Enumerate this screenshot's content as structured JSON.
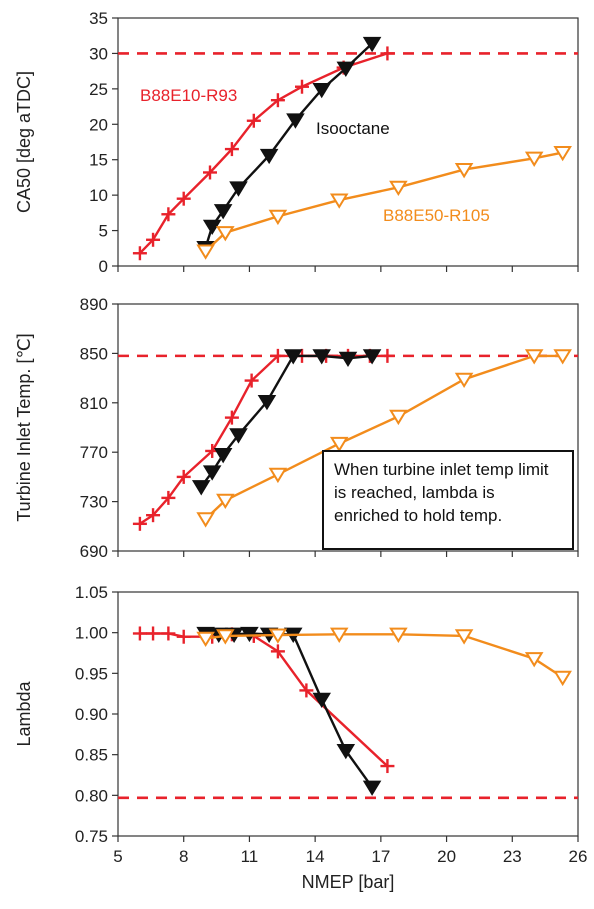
{
  "chart_data": [
    {
      "type": "line",
      "ylabel": "CA50 [deg aTDC]",
      "xlim": [
        5,
        26
      ],
      "ylim": [
        0,
        35
      ],
      "yticks": [
        "0",
        "5",
        "10",
        "15",
        "20",
        "25",
        "30",
        "35"
      ],
      "reference_line": 30,
      "series": [
        {
          "name": "B88E10-R93",
          "color": "#e8222b",
          "marker": "plus",
          "x": [
            6.0,
            6.6,
            7.3,
            8.0,
            9.2,
            10.2,
            11.2,
            12.3,
            13.4,
            15.3,
            17.3
          ],
          "y": [
            1.8,
            3.7,
            7.3,
            9.5,
            13.2,
            16.5,
            20.5,
            23.4,
            25.3,
            28.0,
            30.0
          ]
        },
        {
          "name": "Isooctane",
          "color": "#111111",
          "marker": "triangle-down-filled",
          "x": [
            9.0,
            9.3,
            9.8,
            10.5,
            11.9,
            13.1,
            14.3,
            15.4,
            16.6
          ],
          "y": [
            2.6,
            5.6,
            7.8,
            11.0,
            15.6,
            20.6,
            24.9,
            27.9,
            31.4
          ]
        },
        {
          "name": "B88E50-R105",
          "color": "#f28c1c",
          "marker": "triangle-down-open",
          "x": [
            9.0,
            9.9,
            12.3,
            15.1,
            17.8,
            20.8,
            24.0,
            25.3
          ],
          "y": [
            2.1,
            4.7,
            7.0,
            9.3,
            11.1,
            13.6,
            15.2,
            16.0
          ]
        }
      ]
    },
    {
      "type": "line",
      "ylabel": "Turbine Inlet Temp. [℃]",
      "xlim": [
        5,
        26
      ],
      "ylim": [
        690,
        890
      ],
      "yticks": [
        "690",
        "730",
        "770",
        "810",
        "850",
        "890"
      ],
      "reference_line": 848,
      "series": [
        {
          "name": "B88E10-R93",
          "color": "#e8222b",
          "marker": "plus",
          "x": [
            6.0,
            6.6,
            7.3,
            8.0,
            9.3,
            10.2,
            11.1,
            12.3,
            13.4,
            14.5,
            15.5,
            16.5,
            17.3
          ],
          "y": [
            712,
            719,
            733,
            750,
            771,
            798,
            828,
            848,
            848,
            848,
            848,
            848,
            848
          ]
        },
        {
          "name": "Isooctane",
          "color": "#111111",
          "marker": "triangle-down-filled",
          "x": [
            8.8,
            9.3,
            9.8,
            10.5,
            11.8,
            13.0,
            14.3,
            15.5,
            16.6
          ],
          "y": [
            742,
            754,
            768,
            784,
            811,
            848,
            848,
            846,
            848
          ]
        },
        {
          "name": "B88E50-R105",
          "color": "#f28c1c",
          "marker": "triangle-down-open",
          "x": [
            9.0,
            9.9,
            12.3,
            15.1,
            17.8,
            20.8,
            24.0,
            25.3
          ],
          "y": [
            716,
            731,
            752,
            777,
            799,
            829,
            848,
            848
          ]
        }
      ],
      "annotation": "When turbine inlet temp limit is reached, lambda is enriched to hold temp."
    },
    {
      "type": "line",
      "ylabel": "Lambda",
      "xlabel": "NMEP [bar]",
      "xlim": [
        5,
        26
      ],
      "ylim": [
        0.75,
        1.05
      ],
      "xticks": [
        "5",
        "8",
        "11",
        "14",
        "17",
        "20",
        "23",
        "26"
      ],
      "yticks": [
        "0.75",
        "0.80",
        "0.85",
        "0.90",
        "0.95",
        "1.00",
        "1.05"
      ],
      "reference_line": 0.797,
      "series": [
        {
          "name": "B88E10-R93",
          "color": "#e8222b",
          "marker": "plus",
          "x": [
            6.0,
            6.6,
            7.3,
            8.0,
            9.3,
            10.2,
            11.2,
            12.3,
            13.6,
            17.3
          ],
          "y": [
            0.999,
            0.999,
            0.999,
            0.995,
            0.995,
            0.998,
            0.996,
            0.977,
            0.929,
            0.836
          ]
        },
        {
          "name": "Isooctane",
          "color": "#111111",
          "marker": "triangle-down-filled",
          "x": [
            9.0,
            9.6,
            10.3,
            11.0,
            11.9,
            13.0,
            14.3,
            15.4,
            16.6
          ],
          "y": [
            0.999,
            0.998,
            0.998,
            0.999,
            0.998,
            0.998,
            0.918,
            0.855,
            0.81
          ]
        },
        {
          "name": "B88E50-R105",
          "color": "#f28c1c",
          "marker": "triangle-down-open",
          "x": [
            9.0,
            9.9,
            12.3,
            15.1,
            17.8,
            20.8,
            24.0,
            25.3
          ],
          "y": [
            0.993,
            0.996,
            0.997,
            0.998,
            0.998,
            0.996,
            0.968,
            0.945
          ]
        }
      ]
    }
  ],
  "labels": {
    "series_red": "B88E10-R93",
    "series_black": "Isooctane",
    "series_orange": "B88E50-R105"
  }
}
